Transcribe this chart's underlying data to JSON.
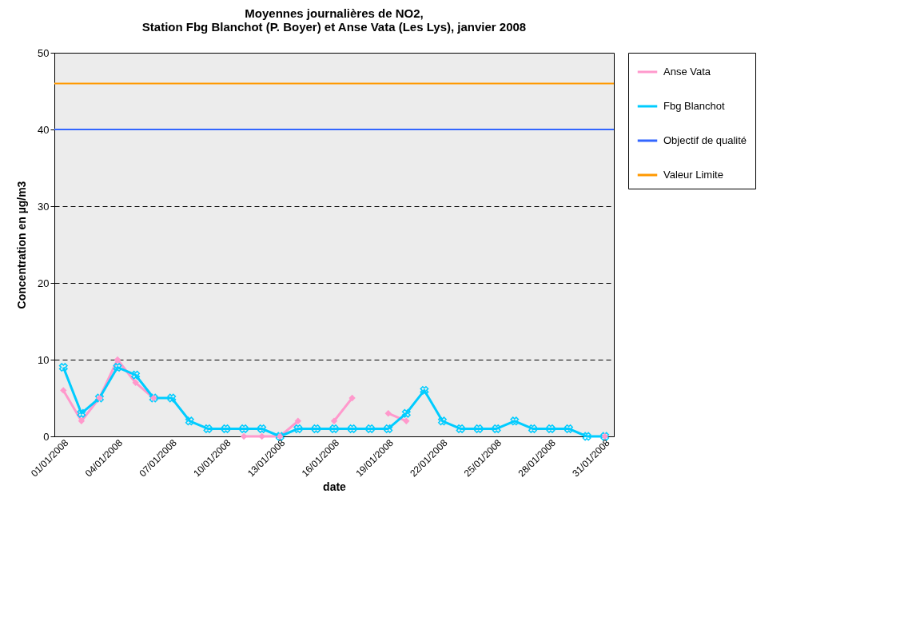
{
  "chart_data": {
    "type": "line",
    "title": "Moyennes journalières de NO2,\nStation Fbg Blanchot (P. Boyer) et Anse Vata (Les Lys),  janvier 2008",
    "xlabel": "date",
    "ylabel": "Concentration en µg/m3",
    "categories": [
      "01/01/2008",
      null,
      null,
      "04/01/2008",
      null,
      null,
      "07/01/2008",
      null,
      null,
      "10/01/2008",
      null,
      null,
      "13/01/2008",
      null,
      null,
      "16/01/2008",
      null,
      null,
      "19/01/2008",
      null,
      null,
      "22/01/2008",
      null,
      null,
      "25/01/2008",
      null,
      null,
      "28/01/2008",
      null,
      null,
      "31/01/2008"
    ],
    "series": [
      {
        "name": "Anse Vata",
        "color": "#ff99cc",
        "marker": "diamond",
        "values": [
          6,
          2,
          5,
          10,
          7,
          5,
          null,
          null,
          null,
          null,
          0,
          0,
          0,
          2,
          null,
          2,
          5,
          null,
          3,
          2,
          null,
          null,
          null,
          null,
          null,
          null,
          null,
          null,
          null,
          null,
          0
        ]
      },
      {
        "name": "Fbg Blanchot",
        "color": "#00ccff",
        "marker": "cross",
        "values": [
          9,
          3,
          5,
          9,
          8,
          5,
          5,
          2,
          1,
          1,
          1,
          1,
          0,
          1,
          1,
          1,
          1,
          1,
          1,
          3,
          6,
          2,
          1,
          1,
          1,
          2,
          1,
          1,
          1,
          0,
          0
        ]
      }
    ],
    "ref_lines": [
      {
        "axis": "y",
        "value": 40,
        "label": "Objectif de qualité",
        "color": "#3366ff"
      },
      {
        "axis": "y",
        "value": 46,
        "label": "Valeur Limite",
        "color": "#ff9900"
      }
    ],
    "ylim": [
      0,
      50
    ],
    "yticks": [
      0,
      10,
      20,
      30,
      40,
      50
    ],
    "grid": "y",
    "legend": "right"
  }
}
